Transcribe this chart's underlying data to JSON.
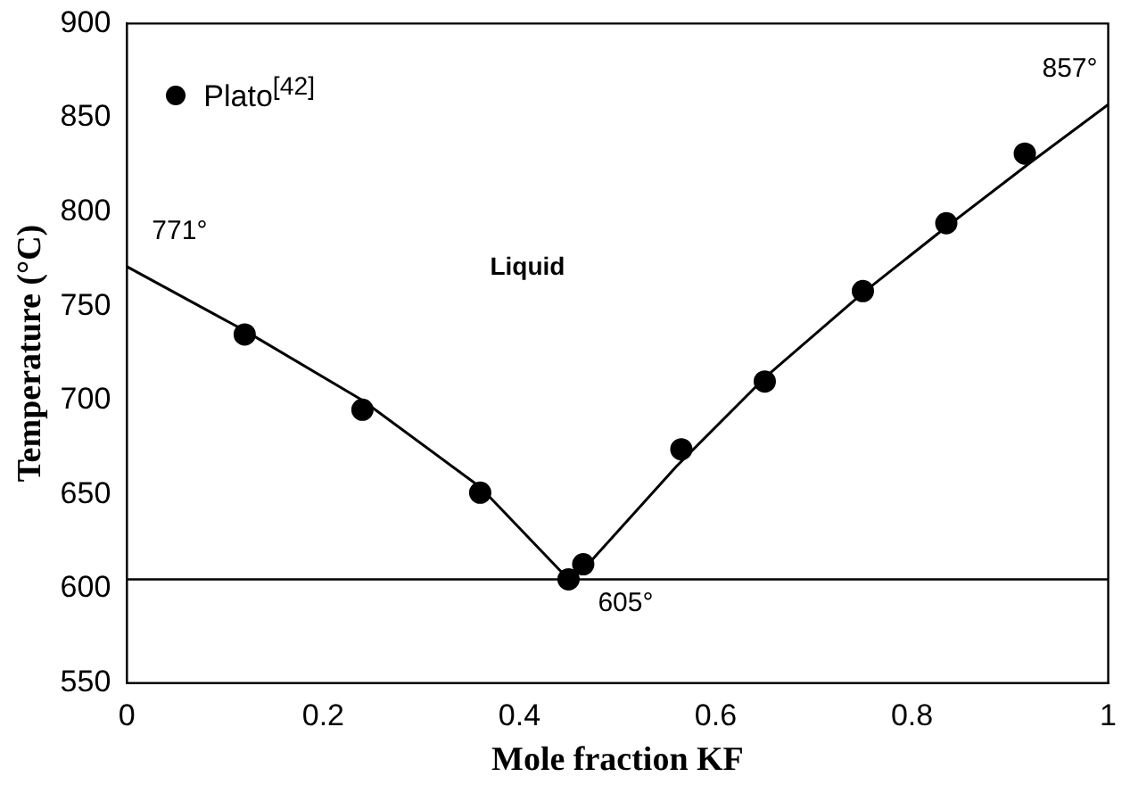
{
  "chart_data": {
    "type": "scatter",
    "xlabel": "Mole fraction KF",
    "ylabel": "Temperature (°C)",
    "series": [
      {
        "name": "Plato$^{[42]}$",
        "color": "#000000",
        "marker": "circle",
        "x": [
          0.12,
          0.24,
          0.36,
          0.45,
          0.465,
          0.565,
          0.65,
          0.75,
          0.835,
          0.915
        ],
        "values": [
          735,
          695,
          651,
          605,
          613,
          674,
          710,
          758,
          794,
          831
        ]
      },
      {
        "type": "line",
        "color": "#000000",
        "marker": "none",
        "x": [
          0,
          0.12,
          0.24,
          0.36,
          0.45,
          0.47,
          0.56,
          0.65,
          0.75,
          0.83,
          0.92,
          1
        ],
        "values": [
          771,
          737,
          700,
          654,
          605,
          613,
          665,
          712,
          757,
          790,
          826,
          857
        ]
      }
    ],
    "xlim": [
      0,
      1
    ],
    "ylim": [
      550,
      900
    ],
    "xticks": [
      0,
      0.2,
      0.4,
      0.6,
      0.8,
      1
    ],
    "yticks": [
      550,
      600,
      650,
      700,
      750,
      800,
      850,
      900
    ],
    "ref_lines": [
      {
        "axis": "y",
        "value": 605,
        "label": "605°",
        "color": "#000000"
      }
    ],
    "annotations": [
      {
        "text": "771°",
        "x": 0,
        "y": 771
      },
      {
        "text": "857°",
        "x": 1,
        "y": 857
      },
      "Liquid"
    ],
    "legend": "top left",
    "grid": false
  }
}
